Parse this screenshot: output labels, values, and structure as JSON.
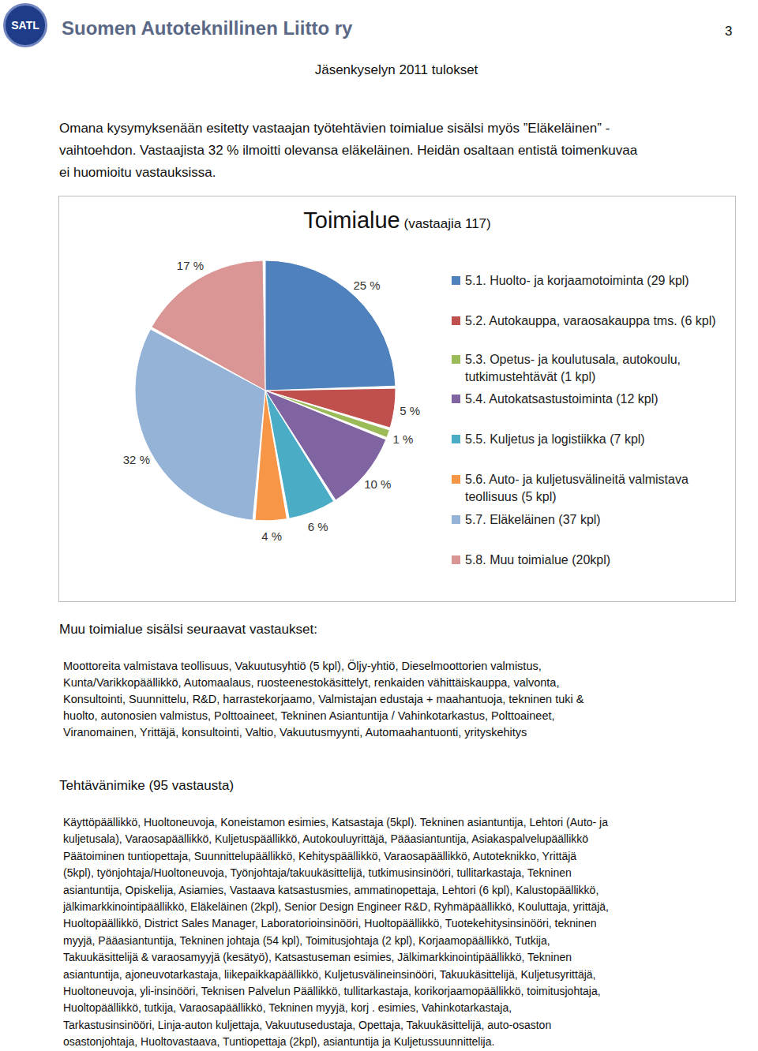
{
  "header": {
    "logo": "SATL",
    "organization": "Suomen Autoteknillinen Liitto ry",
    "page": "3",
    "title": "Jäsenkyselyn 2011 tulokset"
  },
  "intro": [
    "Omana kysymyksenään esitetty vastaajan työtehtävien toimialue sisälsi myös ”Eläkeläinen” -",
    "vaihtoehdon. Vastaajista 32 % ilmoitti olevansa eläkeläinen. Heidän osaltaan entistä toimenkuvaa",
    "ei huomioitu vastauksissa."
  ],
  "chart_data": {
    "type": "pie",
    "title": "Toimialue",
    "subtitle": "(vastaajia 117)",
    "categories": [
      "5.1. Huolto- ja korjaamotoiminta (29 kpl)",
      "5.2. Autokauppa, varaosakauppa tms. (6 kpl)",
      "5.3. Opetus- ja koulutusala, autokoulu, tutkimustehtävät (1 kpl)",
      "5.4. Autokatsastustoiminta (12 kpl)",
      "5.5. Kuljetus ja logistiikka (7 kpl)",
      "5.6. Auto- ja kuljetusvälineitä valmistava teollisuus (5 kpl)",
      "5.7. Eläkeläinen (37 kpl)",
      "5.8. Muu toimialue (20kpl)"
    ],
    "values": [
      25,
      5,
      1,
      10,
      6,
      4,
      32,
      17
    ],
    "value_labels": [
      "25 %",
      "5 %",
      "1 %",
      "10 %",
      "6 %",
      "4 %",
      "32 %",
      "17 %"
    ],
    "colors": [
      "#4f81bd",
      "#c0504d",
      "#9bbb59",
      "#8064a2",
      "#4bacc6",
      "#f79646",
      "#95b3d7",
      "#d99694"
    ],
    "data_labels": true,
    "legend": "right"
  },
  "other_industry": {
    "heading": "Muu toimialue sisälsi seuraavat vastaukset:",
    "lines": [
      "Moottoreita valmistava teollisuus, Vakuutusyhtiö (5 kpl), Öljy-yhtiö, Dieselmoottorien valmistus,",
      "Kunta/Varikkopäällikkö, Automaalaus, ruosteenestokäsittelyt, renkaiden vähittäiskauppa, valvonta,",
      "Konsultointi, Suunnittelu, R&D, harrastekorjaamo, Valmistajan edustaja + maahantuoja, tekninen tuki &",
      "huolto, autonosien valmistus, Polttoaineet, Tekninen Asiantuntija / Vahinkotarkastus, Polttoaineet,",
      "Viranomainen, Yrittäjä, konsultointi, Valtio, Vakuutusmyynti, Automaahantuonti, yrityskehitys"
    ]
  },
  "job_titles": {
    "heading": "Tehtävänimike (95 vastausta)",
    "lines": [
      "Käyttöpäällikkö, Huoltoneuvoja, Koneistamon esimies, Katsastaja (5kpl). Tekninen asiantuntija, Lehtori (Auto- ja",
      "kuljetusala), Varaosapäällikkö, Kuljetuspäällikkö, Autokouluyrittäjä, Pääasiantuntija, Asiakaspalvelupäällikkö",
      "Päätoiminen tuntiopettaja, Suunnittelupäällikkö, Kehityspäällikkö, Varaosapäällikkö, Autoteknikko, Yrittäjä",
      "(5kpl), työnjohtaja/Huoltoneuvoja, Työnjohtaja/takuukäsittelijä, tutkimusinsinööri, tullitarkastaja, Tekninen",
      "asiantuntija, Opiskelija, Asiamies, Vastaava katsastusmies, ammatinopettaja, Lehtori (6 kpl), Kalustopäällikkö,",
      "jälkimarkkinointipäällikkö, Eläkeläinen (2kpl), Senior Design Engineer R&D, Ryhmäpäällikkö, Kouluttaja, yrittäjä,",
      "Huoltopäällikkö, District Sales Manager, Laboratorioinsinööri, Huoltopäällikkö, Tuotekehitysinsinööri, tekninen",
      "myyjä, Pääasiantuntija, Tekninen johtaja (54 kpl), Toimitusjohtaja (2 kpl), Korjaamopäällikkö, Tutkija,",
      "Takuukäsittelijä & varaosamyyjä (kesätyö), Katsastuseman esimies, Jälkimarkkinointipäällikkö, Tekninen",
      "asiantuntija, ajoneuvotarkastaja, liikepaikkapäällikkö, Kuljetusvälineinsinööri, Takuukäsittelijä, Kuljetusyrittäjä,",
      "Huoltoneuvoja, yli-insinööri, Teknisen Palvelun Päällikkö, tullitarkastaja, korikorjaamopäällikkö, toimitusjohtaja,",
      "Huoltopäällikkö, tutkija, Varaosapäällikkö, Tekninen myyjä, korj . esimies, Vahinkotarkastaja,",
      "Tarkastusinsinööri, Linja-auton kuljettaja, Vakuutusedustaja, Opettaja, Takuukäsittelijä, auto-osaston",
      "osastonjohtaja, Huoltovastaava, Tuntiopettaja (2kpl), asiantuntija ja Kuljetussuunnittelija."
    ]
  }
}
